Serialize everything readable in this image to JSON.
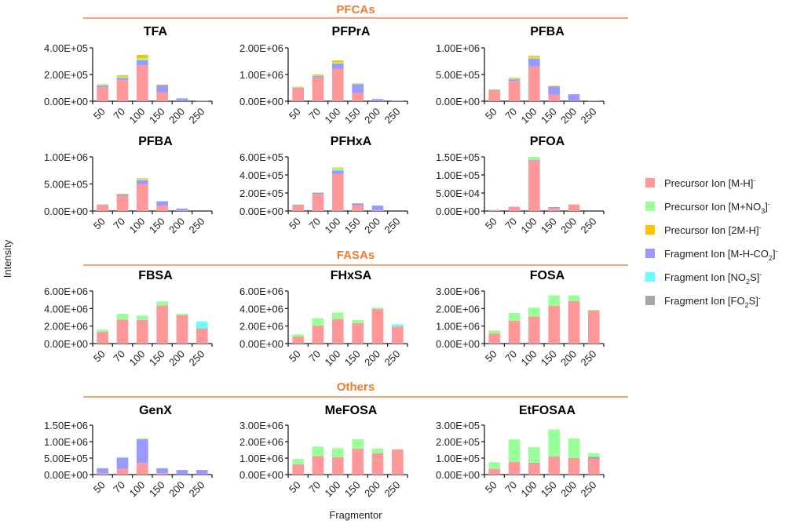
{
  "chart_data": {
    "type": "bar",
    "stacked": true,
    "ylabel": "Intensity",
    "xlabel": "Fragmentor",
    "categories": [
      "50",
      "70",
      "100",
      "150",
      "200",
      "250"
    ],
    "legend": {
      "placement": "right",
      "entries": [
        {
          "key": "mh",
          "base": "Precursor Ion [M-H]",
          "sub": "",
          "tail": "]",
          "sup": "-",
          "color": "#ff9999",
          "label": "Precursor Ion [M-H]-"
        },
        {
          "key": "mno3",
          "base": "Precursor Ion [M+NO",
          "sub": "3",
          "tail": "]",
          "sup": "-",
          "color": "#99ff99",
          "label": "Precursor Ion [M+NO3]-"
        },
        {
          "key": "m2h",
          "base": "Precursor Ion [2M-H]",
          "sub": "",
          "tail": "]",
          "sup": "-",
          "color": "#ffc000",
          "label": "Precursor Ion [2M-H]-"
        },
        {
          "key": "mhco2",
          "base": "Fragment Ion [M-H-CO",
          "sub": "2",
          "tail": "]",
          "sup": "-",
          "color": "#9999ff",
          "label": "Fragment Ion [M-H-CO2]-"
        },
        {
          "key": "no2s",
          "base": "Fragment Ion [NO",
          "sub": "2",
          "tail": "S]",
          "sup": "-",
          "color": "#66ffff",
          "label": "Fragment Ion [NO2S]-"
        },
        {
          "key": "fo2s",
          "base": "Fragment Ion [FO",
          "sub": "2",
          "tail": "S]",
          "sup": "-",
          "color": "#a6a6a6",
          "label": "Fragment Ion [FO2S]-"
        }
      ]
    },
    "sections": [
      {
        "title": "PFCAs"
      },
      {
        "title": "FASAs"
      },
      {
        "title": "Others"
      }
    ],
    "panels": [
      {
        "title": "TFA",
        "row": 0,
        "col": 0,
        "ylim": [
          0,
          400000
        ],
        "yticks": [
          "0.00E+00",
          "2.00E+05",
          "4.00E+05"
        ],
        "series": {
          "mh": [
            105000,
            160000,
            270000,
            65000,
            0,
            0
          ],
          "mhco2": [
            12000,
            15000,
            38000,
            55000,
            20000,
            3000
          ],
          "mno3": [
            5000,
            10000,
            15000,
            0,
            5000,
            0
          ],
          "m2h": [
            5000,
            10000,
            25000,
            5000,
            0,
            0
          ]
        }
      },
      {
        "title": "PFPrA",
        "row": 0,
        "col": 1,
        "ylim": [
          0,
          2000000
        ],
        "yticks": [
          "0.00E+00",
          "1.00E+06",
          "2.00E+06"
        ],
        "series": {
          "mh": [
            480000,
            900000,
            1220000,
            310000,
            0,
            0
          ],
          "mhco2": [
            30000,
            40000,
            190000,
            330000,
            80000,
            20000
          ],
          "mno3": [
            15000,
            30000,
            50000,
            10000,
            0,
            0
          ],
          "m2h": [
            15000,
            30000,
            70000,
            15000,
            0,
            0
          ]
        }
      },
      {
        "title": "PFBA",
        "row": 0,
        "col": 2,
        "ylim": [
          0,
          1000000
        ],
        "yticks": [
          "0.00E+00",
          "5.00E+05",
          "1.00E+06"
        ],
        "series": {
          "mh": [
            190000,
            380000,
            650000,
            120000,
            0,
            0
          ],
          "mhco2": [
            15000,
            30000,
            150000,
            160000,
            130000,
            10000
          ],
          "mno3": [
            8000,
            15000,
            20000,
            5000,
            0,
            0
          ],
          "m2h": [
            7000,
            15000,
            30000,
            5000,
            0,
            0
          ]
        }
      },
      {
        "title": "PFBA",
        "row": 1,
        "col": 0,
        "ylim": [
          0,
          1000000
        ],
        "yticks": [
          "0.00E+00",
          "5.00E+05",
          "1.00E+06"
        ],
        "series": {
          "mh": [
            110000,
            280000,
            500000,
            100000,
            10000,
            0
          ],
          "mhco2": [
            10000,
            25000,
            70000,
            80000,
            35000,
            0
          ],
          "mno3": [
            5000,
            10000,
            20000,
            0,
            0,
            0
          ],
          "m2h": [
            0,
            5000,
            15000,
            0,
            0,
            0
          ]
        }
      },
      {
        "title": "PFHxA",
        "row": 1,
        "col": 1,
        "ylim": [
          0,
          600000
        ],
        "yticks": [
          "0.00E+00",
          "2.00E+05",
          "4.00E+05",
          "6.00E+05"
        ],
        "series": {
          "mh": [
            65000,
            190000,
            410000,
            65000,
            10000,
            0
          ],
          "mhco2": [
            5000,
            10000,
            40000,
            20000,
            50000,
            0
          ],
          "mno3": [
            3000,
            8000,
            25000,
            0,
            0,
            0
          ],
          "m2h": [
            0,
            0,
            8000,
            0,
            0,
            0
          ]
        }
      },
      {
        "title": "PFOA",
        "row": 1,
        "col": 2,
        "ylim": [
          0,
          150000
        ],
        "yticks": [
          "0.00E+00",
          "5.00E+04",
          "1.00E+05",
          "1.50E+05"
        ],
        "series": {
          "mh": [
            3000,
            12000,
            140000,
            8000,
            18000,
            0
          ],
          "mhco2": [
            0,
            0,
            2000,
            3000,
            0,
            0
          ],
          "mno3": [
            0,
            0,
            8000,
            0,
            0,
            0
          ]
        }
      },
      {
        "title": "FBSA",
        "row": 2,
        "col": 0,
        "ylim": [
          0,
          6000000
        ],
        "yticks": [
          "0.00E+00",
          "2.00E+06",
          "4.00E+06",
          "6.00E+06"
        ],
        "series": {
          "mh": [
            1350000,
            2750000,
            2700000,
            4350000,
            3250000,
            1750000
          ],
          "mno3": [
            250000,
            650000,
            500000,
            450000,
            150000,
            0
          ],
          "no2s": [
            0,
            0,
            0,
            0,
            0,
            750000
          ]
        }
      },
      {
        "title": "FHxSA",
        "row": 2,
        "col": 1,
        "ylim": [
          0,
          6000000
        ],
        "yticks": [
          "0.00E+00",
          "2.00E+06",
          "4.00E+06",
          "6.00E+06"
        ],
        "series": {
          "mh": [
            800000,
            2050000,
            2800000,
            2350000,
            3950000,
            1950000
          ],
          "mno3": [
            250000,
            850000,
            750000,
            350000,
            150000,
            0
          ],
          "no2s": [
            0,
            0,
            0,
            0,
            0,
            250000
          ]
        }
      },
      {
        "title": "FOSA",
        "row": 2,
        "col": 2,
        "ylim": [
          0,
          3000000
        ],
        "yticks": [
          "0.00E+00",
          "1.00E+06",
          "2.00E+06",
          "3.00E+06"
        ],
        "series": {
          "mh": [
            580000,
            1300000,
            1550000,
            2150000,
            2420000,
            1880000
          ],
          "mno3": [
            170000,
            450000,
            500000,
            600000,
            330000,
            50000
          ]
        }
      },
      {
        "title": "GenX",
        "row": 3,
        "col": 0,
        "ylim": [
          0,
          1500000
        ],
        "yticks": [
          "0.00E+00",
          "5.00E+05",
          "1.00E+06",
          "1.50E+06"
        ],
        "series": {
          "mh": [
            40000,
            180000,
            350000,
            40000,
            0,
            0
          ],
          "mhco2": [
            150000,
            330000,
            720000,
            150000,
            140000,
            140000
          ],
          "mno3": [
            10000,
            20000,
            30000,
            10000,
            0,
            0
          ]
        }
      },
      {
        "title": "MeFOSA",
        "row": 3,
        "col": 1,
        "ylim": [
          0,
          3000000
        ],
        "yticks": [
          "0.00E+00",
          "1.00E+06",
          "2.00E+06",
          "3.00E+06"
        ],
        "series": {
          "mh": [
            620000,
            1130000,
            1050000,
            1570000,
            1300000,
            1520000
          ],
          "mno3": [
            330000,
            570000,
            550000,
            580000,
            280000,
            30000
          ]
        }
      },
      {
        "title": "EtFOSAA",
        "row": 3,
        "col": 2,
        "ylim": [
          0,
          300000
        ],
        "yticks": [
          "0.00E+00",
          "1.00E+05",
          "2.00E+05",
          "3.00E+05"
        ],
        "series": {
          "mh": [
            35000,
            78000,
            70000,
            108000,
            98000,
            95000
          ],
          "fo2s": [
            0,
            0,
            2000,
            3000,
            3000,
            12000
          ],
          "mno3": [
            40000,
            135000,
            95000,
            163000,
            118000,
            23000
          ]
        }
      }
    ]
  }
}
